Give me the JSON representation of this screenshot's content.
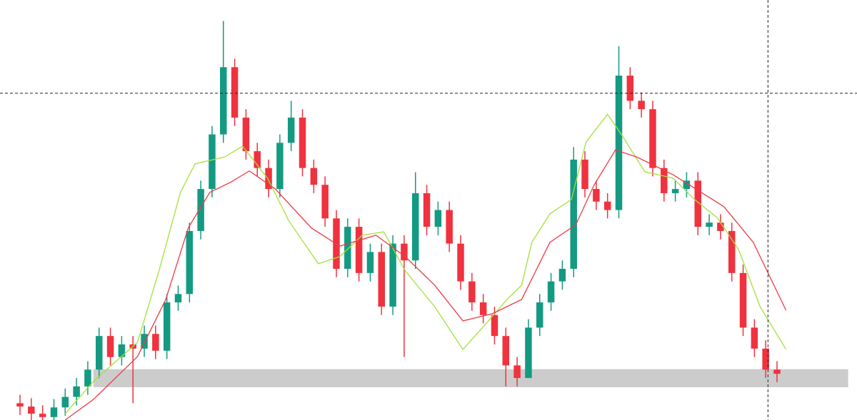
{
  "chart_data": {
    "type": "candlestick",
    "categories": [
      null,
      null,
      null,
      null,
      null,
      null,
      null,
      null,
      null,
      null,
      null,
      null,
      null,
      null,
      null,
      null,
      null,
      null,
      null,
      null,
      null,
      null,
      null,
      null,
      null,
      null,
      null,
      null,
      null,
      null,
      null,
      null,
      null,
      null,
      null,
      null,
      null,
      null,
      null,
      null,
      null,
      null,
      null,
      null,
      null,
      null,
      null,
      null,
      null,
      null,
      null,
      null,
      null,
      null,
      null,
      null,
      null,
      null,
      null,
      null,
      null,
      null,
      null,
      null,
      null,
      null,
      null,
      null
    ],
    "open": [
      4.0,
      3.2,
      1.5,
      0.7,
      3.0,
      5.5,
      8.0,
      12.0,
      20.0,
      15.0,
      18.0,
      17.0,
      20.5,
      16.5,
      28.0,
      30.0,
      45.0,
      55.0,
      68.0,
      84.0,
      72.0,
      64.0,
      60.0,
      55.0,
      66.0,
      72.0,
      60.0,
      56.0,
      48.0,
      36.0,
      46.0,
      35.0,
      40.0,
      27.0,
      42.0,
      38.0,
      54.0,
      46.0,
      50.0,
      42.0,
      33.0,
      28.0,
      25.0,
      20.0,
      13.0,
      10.0,
      22.0,
      28.0,
      33.0,
      36.0,
      62.0,
      55.0,
      52.0,
      50.0,
      82.0,
      76.0,
      74.0,
      60.0,
      54.0,
      55.0,
      57.0,
      46.0,
      47.0,
      45.0,
      35.0,
      22.0,
      17.0,
      12.0
    ],
    "high": [
      6,
      5.2,
      3.5,
      5,
      7.5,
      10,
      14,
      22,
      22,
      20,
      20,
      22.5,
      22.5,
      30,
      32,
      47,
      57,
      70,
      95,
      86,
      74,
      66,
      62,
      68,
      76,
      74,
      62,
      58,
      50,
      48,
      48,
      42,
      42,
      44,
      44,
      59,
      56,
      52,
      52,
      44,
      35,
      30,
      27,
      22,
      15,
      24,
      30,
      35,
      38,
      65,
      64,
      57,
      54,
      89,
      84,
      78,
      76,
      62,
      57,
      59,
      59,
      49,
      49,
      47,
      37,
      24,
      19,
      14
    ],
    "low": [
      1.2,
      0,
      0,
      0,
      1,
      3.5,
      6,
      10,
      13,
      13,
      4,
      15,
      14.5,
      14.5,
      26,
      28,
      43,
      53,
      66,
      70,
      62,
      58,
      53,
      53,
      64,
      58,
      54,
      46,
      34,
      34,
      33,
      33,
      25,
      25,
      15,
      36,
      44,
      44,
      40,
      31,
      26,
      23,
      18,
      8,
      8,
      10,
      20,
      26,
      31,
      34,
      53,
      50,
      48,
      48,
      74,
      72,
      58,
      52,
      52,
      53,
      44,
      44,
      43,
      33,
      20,
      15,
      10,
      9
    ],
    "close": [
      3.2,
      1.5,
      0.7,
      3.0,
      5.5,
      8.0,
      12.0,
      20.0,
      15.0,
      18.0,
      17.0,
      20.5,
      16.5,
      28.0,
      30.0,
      45.0,
      55.0,
      68.0,
      84.0,
      72.0,
      64.0,
      60.0,
      55.0,
      66.0,
      72.0,
      60.0,
      56.0,
      48.0,
      36.0,
      46.0,
      35.0,
      40.0,
      27.0,
      42.0,
      38.0,
      54.0,
      46.0,
      50.0,
      42.0,
      33.0,
      28.0,
      25.0,
      20.0,
      13.0,
      10.0,
      22.0,
      28.0,
      33.0,
      36.0,
      62.0,
      55.0,
      52.0,
      50.0,
      82.0,
      76.0,
      74.0,
      60.0,
      54.0,
      55.0,
      57.0,
      46.0,
      47.0,
      45.0,
      35.0,
      22.0,
      17.0,
      12.0,
      11.0
    ],
    "up_color": "#149a82",
    "down_color": "#f0323f",
    "overlays": [
      {
        "color": "#a4e03a",
        "x": [
          4,
          6.5,
          10.4,
          12.3,
          14.2,
          15.5,
          18.1,
          19.7,
          21.9,
          23.8,
          26.4,
          28.3,
          30.3,
          32.2,
          34.1,
          36.7,
          39.2,
          41.2,
          43.1,
          44.4,
          45.3,
          46.9,
          48.8,
          50.1,
          52,
          53.3,
          55.3,
          57.8,
          59.7,
          61.7,
          63.6,
          65.5,
          67.8
        ],
        "values": [
          1.5,
          9.2,
          18.5,
          35.5,
          54.2,
          61,
          62.6,
          65.2,
          57.6,
          47.4,
          37.2,
          38.9,
          44,
          44.8,
          35.5,
          27,
          16.8,
          22.8,
          28.7,
          32.1,
          42.3,
          49.1,
          52.5,
          66.2,
          72.8,
          67.7,
          59.1,
          57.6,
          52.5,
          48.2,
          40.6,
          27,
          16.8
        ]
      },
      {
        "color": "#ee3a44",
        "x": [
          4,
          6.5,
          10.4,
          12.9,
          14.9,
          16.8,
          18.7,
          20.3,
          22.6,
          25.8,
          28.3,
          31.5,
          34.1,
          36.7,
          39.2,
          41.8,
          44.4,
          46.9,
          49.2,
          50.8,
          52.7,
          54.6,
          57.8,
          62.3,
          64.9,
          67.8
        ],
        "values": [
          0,
          4.9,
          15.1,
          28.7,
          45.8,
          54.2,
          56.7,
          59.3,
          55,
          45.7,
          41.4,
          44,
          38.9,
          32.1,
          23.6,
          25.3,
          28.7,
          42.3,
          46.5,
          55.9,
          64.3,
          62.6,
          58.4,
          50.8,
          42.3,
          26.1
        ]
      }
    ],
    "hline": 77.8,
    "vline": 66.2,
    "zone": {
      "from": 7.8,
      "to": 12.1,
      "x_from": 6.5,
      "x_to": 73.3,
      "color": "#cccccc"
    },
    "xlim": [
      -1.77,
      74.08
    ],
    "ylim": [
      0,
      100
    ]
  }
}
